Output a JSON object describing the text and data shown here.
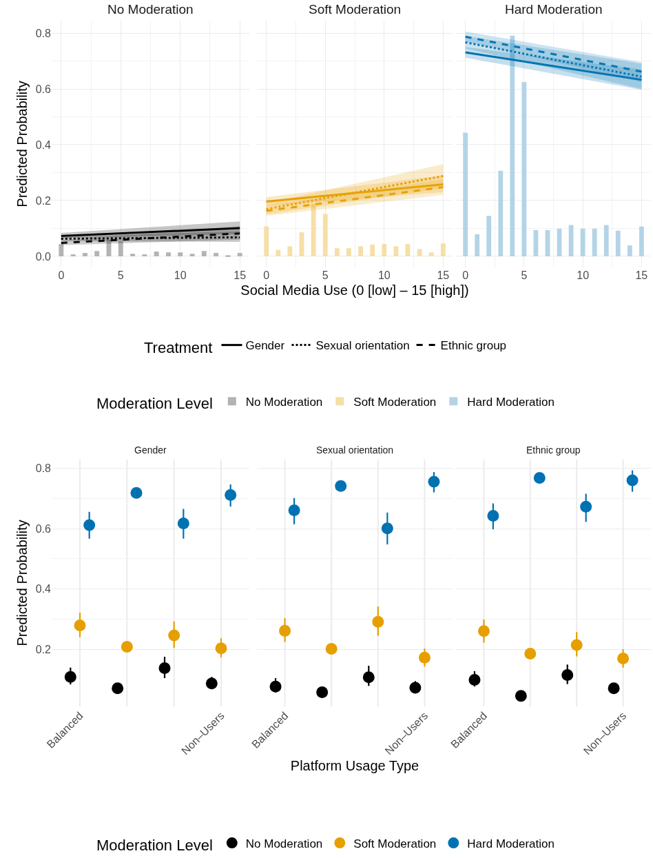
{
  "chart_data": [
    {
      "type": "line",
      "title": "No Moderation",
      "ylabel": "Predicted Probability",
      "legend_title": "Treatment",
      "legend": "bottom",
      "grid": true,
      "xlim": [
        -0.8,
        15.8
      ],
      "xticks": [
        0,
        5,
        10,
        15
      ],
      "ylim": [
        -0.04,
        0.845
      ],
      "yticks": [
        {
          "value": 0,
          "label": "0.0"
        },
        0.2,
        0.4,
        0.6,
        0.8
      ],
      "x": [
        0,
        1,
        2,
        3,
        4,
        5,
        6,
        7,
        8,
        9,
        10,
        11,
        12,
        13,
        14,
        15
      ],
      "series": [
        {
          "name": "Gender",
          "color": "#000000",
          "line_style": "solid",
          "values": [
            0.073,
            null,
            null,
            null,
            null,
            null,
            null,
            null,
            null,
            null,
            null,
            null,
            null,
            null,
            null,
            0.101
          ],
          "lower": [
            0.064,
            null,
            null,
            null,
            null,
            null,
            null,
            null,
            null,
            null,
            null,
            null,
            null,
            null,
            null,
            0.08
          ],
          "upper": [
            0.084,
            null,
            null,
            null,
            null,
            null,
            null,
            null,
            null,
            null,
            null,
            null,
            null,
            null,
            null,
            0.125
          ]
        },
        {
          "name": "Sexual orientation",
          "color": "#000000",
          "line_style": "dotted",
          "values": [
            0.063,
            null,
            null,
            null,
            null,
            null,
            null,
            null,
            null,
            null,
            null,
            null,
            null,
            null,
            null,
            0.068
          ],
          "lower": [
            0.054,
            null,
            null,
            null,
            null,
            null,
            null,
            null,
            null,
            null,
            null,
            null,
            null,
            null,
            null,
            0.052
          ],
          "upper": [
            0.072,
            null,
            null,
            null,
            null,
            null,
            null,
            null,
            null,
            null,
            null,
            null,
            null,
            null,
            null,
            0.09
          ]
        },
        {
          "name": "Ethnic group",
          "color": "#000000",
          "line_style": "dashed",
          "values": [
            0.048,
            null,
            null,
            null,
            null,
            null,
            null,
            null,
            null,
            null,
            null,
            null,
            null,
            null,
            null,
            0.082
          ],
          "lower": [
            0.04,
            null,
            null,
            null,
            null,
            null,
            null,
            null,
            null,
            null,
            null,
            null,
            null,
            null,
            null,
            0.06
          ],
          "upper": [
            0.058,
            null,
            null,
            null,
            null,
            null,
            null,
            null,
            null,
            null,
            null,
            null,
            null,
            null,
            null,
            0.108
          ]
        },
        {
          "name": "No Moderation",
          "type": "bar",
          "color": "#b3b3b3",
          "values": [
            0.044,
            0.007,
            0.012,
            0.019,
            0.059,
            0.054,
            0.009,
            0.007,
            0.017,
            0.014,
            0.014,
            0.009,
            0.019,
            0.012,
            0.004,
            0.012
          ]
        }
      ]
    },
    {
      "type": "line",
      "title": "Soft Moderation",
      "xlabel": "Social Media Use (0 [low] – 15 [high])",
      "legend_title": "Moderation Level",
      "legend": "bottom",
      "grid": true,
      "tick_labels": "x",
      "xlim": [
        -0.8,
        15.8
      ],
      "xticks": [
        0,
        5,
        10,
        15
      ],
      "ylim": [
        -0.04,
        0.845
      ],
      "yticks": [
        0,
        0.2,
        0.4,
        0.6,
        0.8
      ],
      "x": [
        0,
        1,
        2,
        3,
        4,
        5,
        6,
        7,
        8,
        9,
        10,
        11,
        12,
        13,
        14,
        15
      ],
      "series": [
        {
          "color": "#e69f00",
          "line_style": "solid",
          "values": [
            0.196,
            null,
            null,
            null,
            null,
            null,
            null,
            null,
            null,
            null,
            null,
            null,
            null,
            null,
            null,
            0.258
          ],
          "lower": [
            0.18,
            null,
            null,
            null,
            null,
            null,
            null,
            null,
            null,
            null,
            null,
            null,
            null,
            null,
            null,
            0.23
          ],
          "upper": [
            0.212,
            null,
            null,
            null,
            null,
            null,
            null,
            null,
            null,
            null,
            null,
            null,
            null,
            null,
            null,
            0.29
          ]
        },
        {
          "color": "#e69f00",
          "line_style": "dotted",
          "values": [
            0.169,
            null,
            null,
            null,
            null,
            null,
            null,
            null,
            null,
            null,
            null,
            null,
            null,
            null,
            null,
            0.288
          ],
          "lower": [
            0.15,
            null,
            null,
            null,
            null,
            null,
            null,
            null,
            null,
            null,
            null,
            null,
            null,
            null,
            null,
            0.245
          ],
          "upper": [
            0.19,
            null,
            null,
            null,
            null,
            null,
            null,
            null,
            null,
            null,
            null,
            null,
            null,
            null,
            null,
            0.33
          ]
        },
        {
          "color": "#e69f00",
          "line_style": "dashed",
          "values": [
            0.163,
            null,
            null,
            null,
            null,
            null,
            null,
            null,
            null,
            null,
            null,
            null,
            null,
            null,
            null,
            0.248
          ],
          "lower": [
            0.145,
            null,
            null,
            null,
            null,
            null,
            null,
            null,
            null,
            null,
            null,
            null,
            null,
            null,
            null,
            0.22
          ],
          "upper": [
            0.18,
            null,
            null,
            null,
            null,
            null,
            null,
            null,
            null,
            null,
            null,
            null,
            null,
            null,
            null,
            0.275
          ]
        },
        {
          "name": "Soft Moderation",
          "type": "bar",
          "color": "#f6dfa6",
          "values": [
            0.107,
            0.023,
            0.036,
            0.086,
            0.188,
            0.152,
            0.029,
            0.029,
            0.036,
            0.042,
            0.044,
            0.036,
            0.044,
            0.026,
            0.014,
            0.046
          ]
        }
      ]
    },
    {
      "type": "line",
      "title": "Hard Moderation",
      "legend": "bottom",
      "grid": true,
      "tick_labels": "x",
      "xlim": [
        -0.8,
        15.8
      ],
      "xticks": [
        0,
        5,
        10,
        15
      ],
      "ylim": [
        -0.04,
        0.845
      ],
      "yticks": [
        0,
        0.2,
        0.4,
        0.6,
        0.8
      ],
      "x": [
        0,
        1,
        2,
        3,
        4,
        5,
        6,
        7,
        8,
        9,
        10,
        11,
        12,
        13,
        14,
        15
      ],
      "series": [
        {
          "color": "#0072b2",
          "line_style": "solid",
          "values": [
            0.731,
            null,
            null,
            null,
            null,
            null,
            null,
            null,
            null,
            null,
            null,
            null,
            null,
            null,
            null,
            0.633
          ],
          "lower": [
            0.712,
            null,
            null,
            null,
            null,
            null,
            null,
            null,
            null,
            null,
            null,
            null,
            null,
            null,
            null,
            0.597
          ],
          "upper": [
            0.75,
            null,
            null,
            null,
            null,
            null,
            null,
            null,
            null,
            null,
            null,
            null,
            null,
            null,
            null,
            0.67
          ]
        },
        {
          "color": "#0072b2",
          "line_style": "dotted",
          "values": [
            0.767,
            null,
            null,
            null,
            null,
            null,
            null,
            null,
            null,
            null,
            null,
            null,
            null,
            null,
            null,
            0.644
          ],
          "lower": [
            0.745,
            null,
            null,
            null,
            null,
            null,
            null,
            null,
            null,
            null,
            null,
            null,
            null,
            null,
            null,
            0.6
          ],
          "upper": [
            0.79,
            null,
            null,
            null,
            null,
            null,
            null,
            null,
            null,
            null,
            null,
            null,
            null,
            null,
            null,
            0.69
          ]
        },
        {
          "color": "#0072b2",
          "line_style": "dashed",
          "values": [
            0.787,
            null,
            null,
            null,
            null,
            null,
            null,
            null,
            null,
            null,
            null,
            null,
            null,
            null,
            null,
            0.662
          ],
          "lower": [
            0.77,
            null,
            null,
            null,
            null,
            null,
            null,
            null,
            null,
            null,
            null,
            null,
            null,
            null,
            null,
            0.625
          ],
          "upper": [
            0.806,
            null,
            null,
            null,
            null,
            null,
            null,
            null,
            null,
            null,
            null,
            null,
            null,
            null,
            null,
            0.696
          ]
        },
        {
          "name": "Hard Moderation",
          "type": "bar",
          "color": "#b3d4e6",
          "values": [
            0.443,
            0.079,
            0.145,
            0.307,
            0.791,
            0.625,
            0.094,
            0.094,
            0.099,
            0.112,
            0.099,
            0.099,
            0.112,
            0.092,
            0.039,
            0.107
          ]
        }
      ]
    },
    {
      "type": "scatter",
      "title": "Gender",
      "ylabel": "Predicted Probability",
      "legend_title": "Moderation Level",
      "legend": "bottom",
      "marker": "circle",
      "grid": true,
      "ylim": [
        0.01,
        0.83
      ],
      "yticks": [
        0.2,
        0.4,
        0.6,
        0.8
      ],
      "categories": [
        "Balanced",
        null,
        null,
        "Non–Users"
      ],
      "series": [
        {
          "name": "No Moderation",
          "color": "#000000",
          "values": [
            0.108,
            0.07,
            0.137,
            0.086
          ],
          "errors": [
            [
              0.083,
              0.139
            ],
            null,
            [
              0.104,
              0.175
            ],
            [
              0.068,
              0.108
            ]
          ]
        },
        {
          "name": "Soft Moderation",
          "color": "#e69f00",
          "values": [
            0.279,
            0.208,
            0.246,
            0.203
          ],
          "errors": [
            [
              0.24,
              0.321
            ],
            null,
            [
              0.204,
              0.292
            ],
            [
              0.173,
              0.236
            ]
          ]
        },
        {
          "name": "Hard Moderation",
          "color": "#0072b2",
          "values": [
            0.612,
            0.719,
            0.618,
            0.712
          ],
          "errors": [
            [
              0.567,
              0.656
            ],
            null,
            [
              0.567,
              0.666
            ],
            [
              0.674,
              0.747
            ]
          ]
        }
      ]
    },
    {
      "type": "scatter",
      "title": "Sexual orientation",
      "xlabel": "Platform Usage Type",
      "marker": "circle",
      "grid": true,
      "tick_labels": "x",
      "ylim": [
        0.01,
        0.83
      ],
      "yticks": [
        0.2,
        0.4,
        0.6,
        0.8
      ],
      "categories": [
        "Balanced",
        null,
        null,
        "Non–Users"
      ],
      "series": [
        {
          "color": "#000000",
          "values": [
            0.076,
            0.057,
            0.107,
            0.072
          ],
          "errors": [
            [
              0.056,
              0.104
            ],
            null,
            [
              0.078,
              0.145
            ],
            [
              0.06,
              0.094
            ]
          ]
        },
        {
          "color": "#e69f00",
          "values": [
            0.261,
            0.201,
            0.291,
            0.172
          ],
          "errors": [
            [
              0.224,
              0.303
            ],
            null,
            [
              0.245,
              0.342
            ],
            [
              0.142,
              0.202
            ]
          ]
        },
        {
          "color": "#0072b2",
          "values": [
            0.661,
            0.742,
            0.601,
            0.756
          ],
          "errors": [
            [
              0.615,
              0.702
            ],
            null,
            [
              0.548,
              0.654
            ],
            [
              0.721,
              0.788
            ]
          ]
        }
      ]
    },
    {
      "type": "scatter",
      "title": "Ethnic group",
      "marker": "circle",
      "grid": true,
      "tick_labels": "x",
      "ylim": [
        0.01,
        0.83
      ],
      "yticks": [
        0.2,
        0.4,
        0.6,
        0.8
      ],
      "categories": [
        "Balanced",
        null,
        null,
        "Non–Users"
      ],
      "series": [
        {
          "color": "#000000",
          "values": [
            0.098,
            0.045,
            0.114,
            0.07
          ],
          "errors": [
            [
              0.076,
              0.127
            ],
            null,
            [
              0.084,
              0.149
            ],
            [
              0.058,
              0.085
            ]
          ]
        },
        {
          "color": "#e69f00",
          "values": [
            0.26,
            0.185,
            0.214,
            0.169
          ],
          "errors": [
            [
              0.222,
              0.299
            ],
            null,
            [
              0.176,
              0.257
            ],
            [
              0.139,
              0.2
            ]
          ]
        },
        {
          "color": "#0072b2",
          "values": [
            0.643,
            0.769,
            0.673,
            0.761
          ],
          "errors": [
            [
              0.598,
              0.684
            ],
            null,
            [
              0.623,
              0.716
            ],
            [
              0.723,
              0.794
            ]
          ]
        }
      ]
    }
  ]
}
